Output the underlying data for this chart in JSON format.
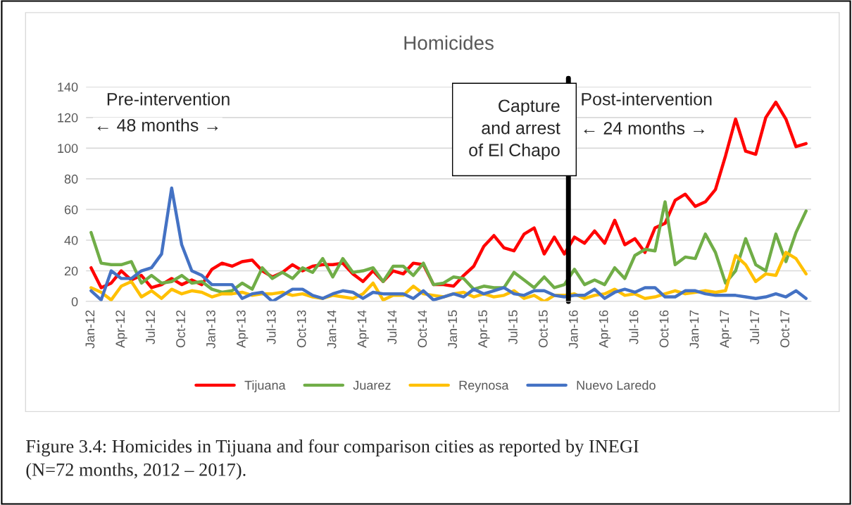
{
  "chart_data": {
    "type": "line",
    "title": "Homicides",
    "categories": [
      "Jan-12",
      null,
      null,
      "Apr-12",
      null,
      null,
      "Jul-12",
      null,
      null,
      "Oct-12",
      null,
      null,
      "Jan-13",
      null,
      null,
      "Apr-13",
      null,
      null,
      "Jul-13",
      null,
      null,
      "Oct-13",
      null,
      null,
      "Jan-14",
      null,
      null,
      "Apr-14",
      null,
      null,
      "Jul-14",
      null,
      null,
      "Oct-14",
      null,
      null,
      "Jan-15",
      null,
      null,
      "Apr-15",
      null,
      null,
      "Jul-15",
      null,
      null,
      "Oct-15",
      null,
      null,
      "Jan-16",
      null,
      null,
      "Apr-16",
      null,
      null,
      "Jul-16",
      null,
      null,
      "Oct-16",
      null,
      null,
      "Jan-17",
      null,
      null,
      "Apr-17",
      null,
      null,
      "Jul-17",
      null,
      null,
      "Oct-17",
      null,
      null
    ],
    "series": [
      {
        "name": "Tijuana",
        "color": "#ff0000",
        "values": [
          22,
          9,
          12,
          20,
          14,
          17,
          9,
          11,
          15,
          11,
          14,
          11,
          21,
          25,
          23,
          26,
          27,
          20,
          16,
          19,
          24,
          20,
          23,
          24,
          24,
          25,
          18,
          13,
          20,
          13,
          20,
          18,
          25,
          24,
          11,
          11,
          10,
          17,
          23,
          36,
          43,
          35,
          33,
          44,
          48,
          31,
          42,
          31,
          42,
          38,
          46,
          38,
          53,
          37,
          41,
          32,
          48,
          51,
          66,
          70,
          62,
          65,
          73,
          95,
          119,
          98,
          96,
          120,
          130,
          119,
          101,
          103
        ]
      },
      {
        "name": "Juarez",
        "color": "#70ad47",
        "values": [
          45,
          25,
          24,
          24,
          26,
          12,
          17,
          12,
          13,
          17,
          12,
          13,
          8,
          6,
          7,
          12,
          8,
          22,
          15,
          19,
          15,
          22,
          19,
          28,
          16,
          28,
          19,
          20,
          22,
          13,
          23,
          23,
          17,
          25,
          11,
          12,
          16,
          15,
          8,
          10,
          9,
          9,
          19,
          14,
          9,
          16,
          9,
          11,
          21,
          11,
          14,
          11,
          22,
          15,
          30,
          34,
          33,
          65,
          24,
          29,
          28,
          44,
          32,
          12,
          20,
          41,
          24,
          20,
          44,
          26,
          45,
          59
        ]
      },
      {
        "name": "Reynosa",
        "color": "#ffc000",
        "values": [
          9,
          6,
          1,
          10,
          13,
          3,
          7,
          2,
          8,
          5,
          7,
          6,
          3,
          5,
          5,
          6,
          4,
          5,
          5,
          6,
          4,
          5,
          3,
          2,
          4,
          3,
          2,
          5,
          12,
          1,
          4,
          4,
          10,
          5,
          4,
          3,
          5,
          6,
          3,
          5,
          3,
          4,
          7,
          2,
          4,
          0,
          4,
          4,
          5,
          2,
          4,
          5,
          8,
          4,
          5,
          2,
          3,
          5,
          7,
          5,
          6,
          7,
          6,
          7,
          30,
          24,
          13,
          18,
          17,
          32,
          28,
          18
        ]
      },
      {
        "name": "Nuevo Laredo",
        "color": "#4472c4",
        "values": [
          7,
          1,
          20,
          15,
          15,
          20,
          22,
          31,
          74,
          37,
          20,
          17,
          11,
          11,
          11,
          2,
          5,
          6,
          0,
          4,
          8,
          8,
          4,
          2,
          5,
          7,
          6,
          2,
          6,
          5,
          5,
          5,
          2,
          7,
          1,
          3,
          5,
          3,
          8,
          5,
          7,
          9,
          5,
          4,
          7,
          7,
          4,
          3,
          4,
          4,
          8,
          2,
          6,
          8,
          6,
          9,
          9,
          3,
          3,
          7,
          7,
          5,
          4,
          4,
          4,
          3,
          2,
          3,
          5,
          3,
          7,
          2
        ]
      }
    ],
    "ylim": [
      0,
      140
    ],
    "yticks": [
      0,
      20,
      40,
      60,
      80,
      100,
      120,
      140
    ],
    "grid": "y",
    "legend": "bottom",
    "marker": "none",
    "line_style": "solid",
    "annotations": [
      "Capture\nand arrest\nof El Chapo",
      "Pre-intervention",
      "← 48 months →",
      "Post-intervention",
      "← 24 months →",
      "Figure 3.4: Homicides in Tijuana and four comparison cities as reported by INEGI\n(N=72 months, 2012 – 2017)."
    ]
  }
}
